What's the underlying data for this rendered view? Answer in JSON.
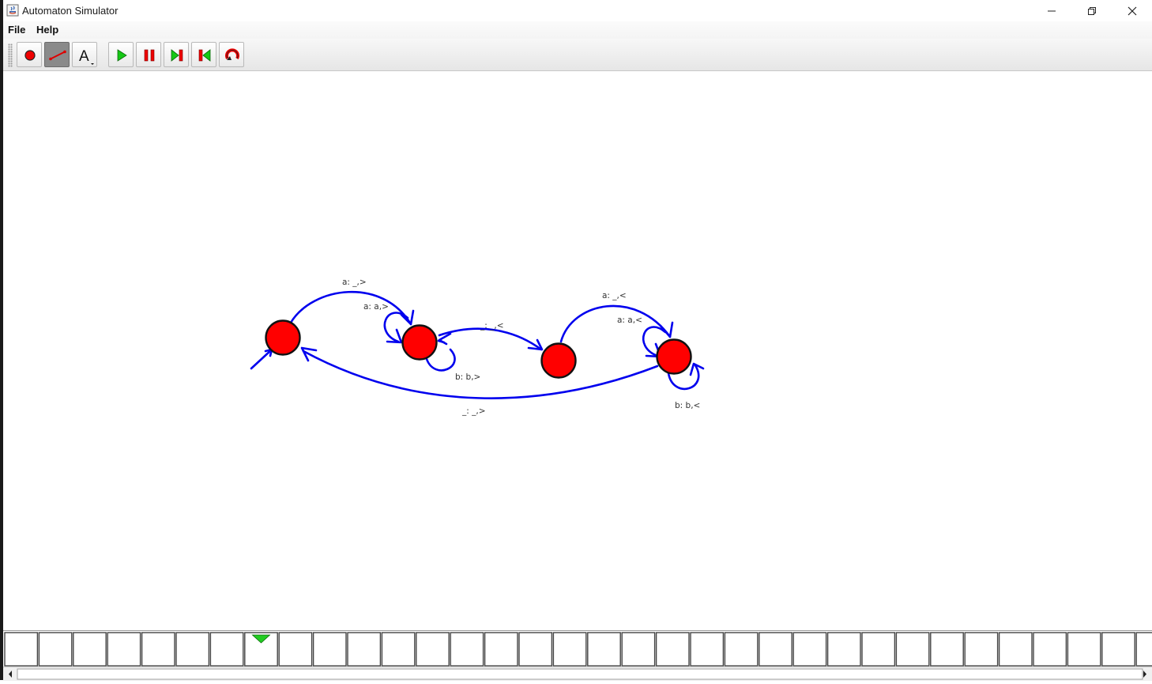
{
  "window": {
    "title": "Automaton Simulator",
    "controls": [
      "minimize-icon",
      "restore-icon",
      "close-icon"
    ]
  },
  "menu": {
    "file": "File",
    "help": "Help"
  },
  "toolbar": {
    "tools": [
      {
        "name": "add-state",
        "icon": "red-circle-icon"
      },
      {
        "name": "add-transition",
        "icon": "line-icon",
        "pressed": true
      },
      {
        "name": "text-tool",
        "icon": "text-A-icon",
        "label": "A"
      },
      {
        "name": "run",
        "icon": "play-icon"
      },
      {
        "name": "pause",
        "icon": "pause-icon"
      },
      {
        "name": "step",
        "icon": "step-forward-icon"
      },
      {
        "name": "rewind",
        "icon": "step-back-icon"
      },
      {
        "name": "reset",
        "icon": "reset-icon"
      }
    ]
  },
  "automaton": {
    "state_color": "#ff0000",
    "edge_color": "#0000ee",
    "states": [
      "q0",
      "q1",
      "q2",
      "q3"
    ],
    "initial_state": "q0",
    "transitions": [
      {
        "from": "q0",
        "to": "q1",
        "label": "a: _,>"
      },
      {
        "from": "q1",
        "to": "q1",
        "label": "a: a,>"
      },
      {
        "from": "q1",
        "to": "q1",
        "label": "b: b,>"
      },
      {
        "from": "q1",
        "to": "q2",
        "label": "_: _,<"
      },
      {
        "from": "q2",
        "to": "q3",
        "label": "a: _,<"
      },
      {
        "from": "q3",
        "to": "q3",
        "label": "a: a,<"
      },
      {
        "from": "q3",
        "to": "q3",
        "label": "b: b,<"
      },
      {
        "from": "q3",
        "to": "q0",
        "label": "_: _,>"
      }
    ]
  },
  "tape": {
    "cell_count": 34,
    "cells": [
      "",
      "",
      "",
      "",
      "",
      "",
      "",
      "",
      "",
      "",
      "",
      "",
      "",
      "",
      "",
      "",
      "",
      "",
      "",
      "",
      "",
      "",
      "",
      "",
      "",
      "",
      "",
      "",
      "",
      "",
      "",
      "",
      "",
      ""
    ],
    "head_position": 7,
    "head_color": "#22cc22"
  }
}
